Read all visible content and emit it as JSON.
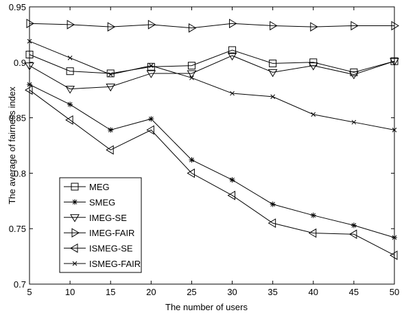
{
  "chart_data": {
    "type": "line",
    "xlabel": "The number of users",
    "ylabel": "The average of fairness index",
    "xlim": [
      5,
      50
    ],
    "ylim": [
      0.7,
      0.95
    ],
    "x_ticks": [
      "5",
      "10",
      "15",
      "20",
      "25",
      "30",
      "35",
      "40",
      "45",
      "50"
    ],
    "y_ticks": [
      "0.7",
      "0.75",
      "0.8",
      "0.85",
      "0.9",
      "0.95"
    ],
    "grid": false,
    "legend_position": "bottom-left",
    "x": [
      5,
      10,
      15,
      20,
      25,
      30,
      35,
      40,
      45,
      50
    ],
    "series": [
      {
        "name": "MEG",
        "marker": "square",
        "values": [
          0.907,
          0.892,
          0.89,
          0.896,
          0.897,
          0.911,
          0.899,
          0.9,
          0.891,
          0.901
        ]
      },
      {
        "name": "SMEG",
        "marker": "star",
        "values": [
          0.88,
          0.862,
          0.839,
          0.849,
          0.812,
          0.794,
          0.772,
          0.762,
          0.753,
          0.742
        ]
      },
      {
        "name": "IMEG-SE",
        "marker": "triangle-down",
        "values": [
          0.897,
          0.876,
          0.878,
          0.89,
          0.89,
          0.906,
          0.891,
          0.897,
          0.889,
          0.901
        ]
      },
      {
        "name": "IMEG-FAIR",
        "marker": "triangle-right",
        "values": [
          0.935,
          0.934,
          0.932,
          0.934,
          0.931,
          0.935,
          0.933,
          0.932,
          0.933,
          0.933
        ]
      },
      {
        "name": "ISMEG-SE",
        "marker": "triangle-left",
        "values": [
          0.875,
          0.848,
          0.821,
          0.839,
          0.8,
          0.78,
          0.755,
          0.746,
          0.745,
          0.726
        ]
      },
      {
        "name": "ISMEG-FAIR",
        "marker": "x",
        "values": [
          0.919,
          0.904,
          0.889,
          0.897,
          0.886,
          0.872,
          0.869,
          0.853,
          0.846,
          0.839
        ]
      }
    ]
  }
}
